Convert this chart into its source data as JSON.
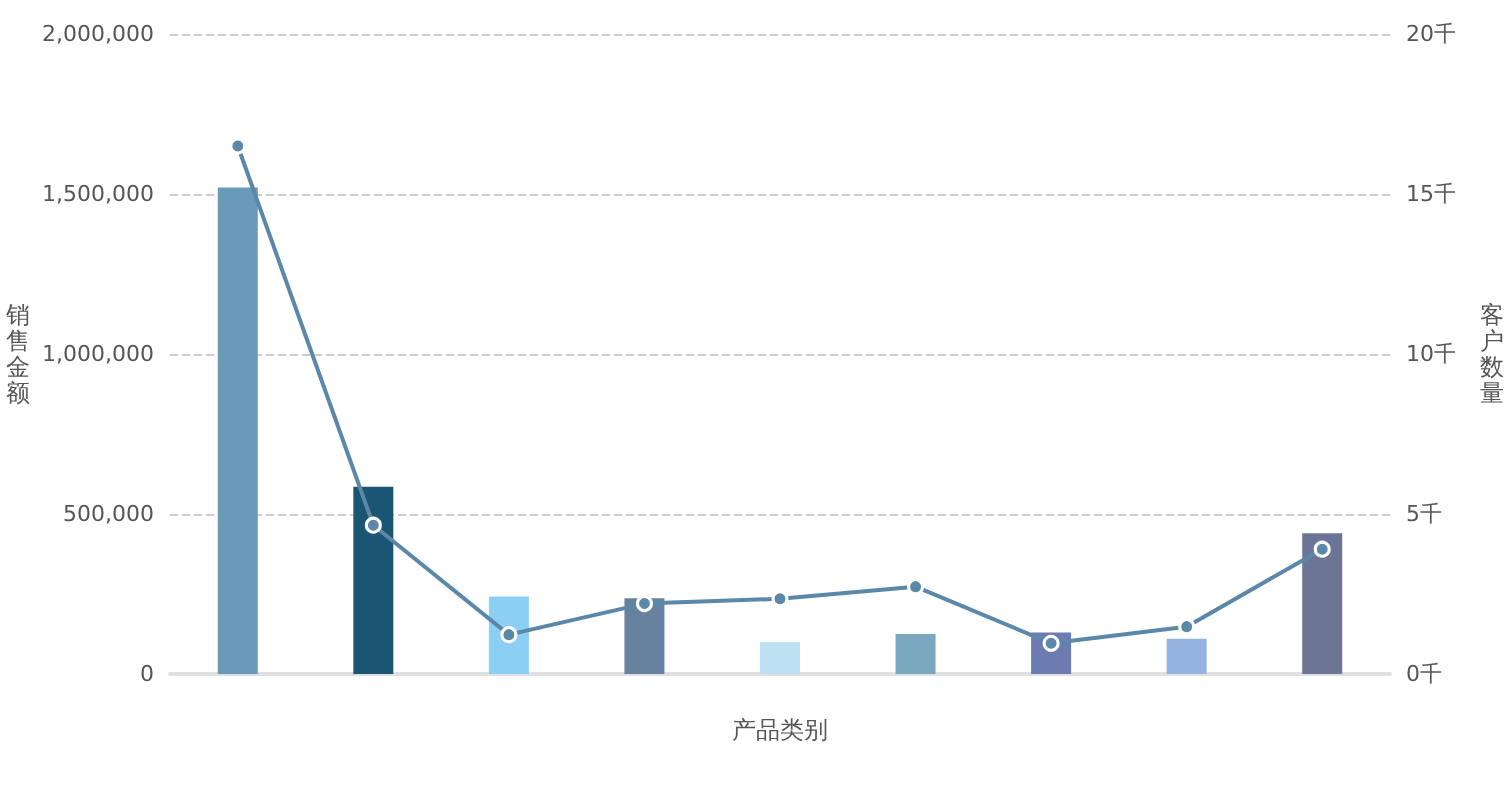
{
  "chart_data": {
    "type": "bar",
    "xlabel": "产品类别",
    "ylabel": "销售金额",
    "y2label": "客户数量",
    "categories": [
      null,
      null,
      null,
      null,
      null,
      null,
      null,
      null,
      null
    ],
    "series": [
      {
        "colors": [
          "#6a9aba",
          "#1a5674",
          "#8ccff5",
          "#66829e",
          "#bde0f2",
          "#7aa8c0",
          "#6c7bb0",
          "#94b3e0",
          "#6c7596"
        ],
        "values": [
          1520000,
          585000,
          242000,
          237000,
          100000,
          125000,
          130000,
          110000,
          440000
        ]
      },
      {
        "type": "line",
        "axis": "y2",
        "color": "#5b88a8",
        "values": [
          16.5,
          4.65,
          1.23,
          2.2,
          2.35,
          2.73,
          0.96,
          1.48,
          3.9
        ]
      }
    ],
    "ylim": [
      0,
      2000000
    ],
    "yticks": [
      0,
      {
        "value": 500000,
        "label": "500,000"
      },
      {
        "value": 1000000,
        "label": "1,000,000"
      },
      {
        "value": 1500000,
        "label": "1,500,000"
      },
      {
        "value": 2000000,
        "label": "2,000,000"
      }
    ],
    "y2lim": [
      0,
      20
    ],
    "y2ticks": [
      {
        "value": 0,
        "label": "0千"
      },
      {
        "value": 5,
        "label": "5千"
      },
      {
        "value": 10,
        "label": "10千"
      },
      {
        "value": 15,
        "label": "15千"
      },
      {
        "value": 20,
        "label": "20千"
      }
    ],
    "grid": "y",
    "marker": "circle"
  }
}
